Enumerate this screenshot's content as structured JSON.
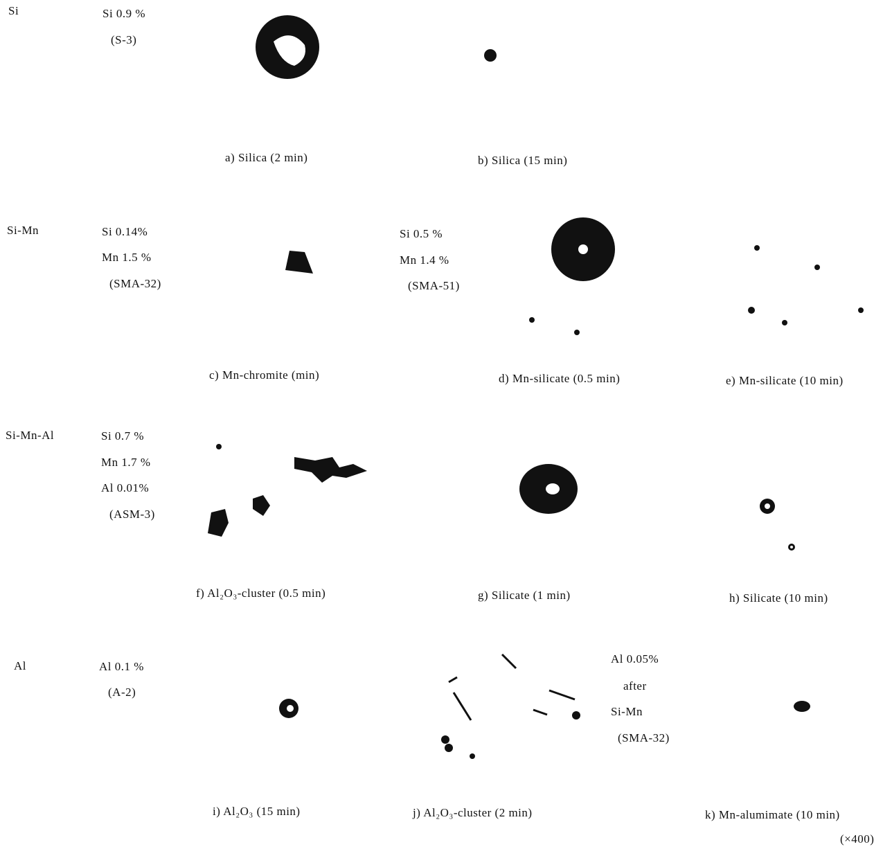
{
  "rows": [
    {
      "label": "Si",
      "composition": [
        "Si 0.9 %",
        "(S-3)"
      ]
    },
    {
      "label": "Si-Mn",
      "composition": [
        "Si 0.14%",
        "Mn 1.5 %",
        "(SMA-32)"
      ]
    },
    {
      "label": "Si-Mn-Al",
      "composition": [
        "Si 0.7 %",
        "Mn 1.7 %",
        "Al 0.01%",
        "(ASM-3)"
      ]
    },
    {
      "label": "Al",
      "composition": [
        "Al 0.1 %",
        "(A-2)"
      ]
    }
  ],
  "panels": [
    {
      "caption": "a) Silica (2 min)"
    },
    {
      "caption": "b) Silica (15 min)"
    },
    {
      "caption": "c) Mn-chromite (min)"
    },
    {
      "caption": "d) Mn-silicate (0.5 min)",
      "composition": [
        "Si 0.5 %",
        "Mn 1.4 %",
        "(SMA-51)"
      ]
    },
    {
      "caption": "e) Mn-silicate (10 min)"
    },
    {
      "caption": "f) Al₂O₃-cluster (0.5 min)"
    },
    {
      "caption": "g) Silicate (1 min)"
    },
    {
      "caption": "h) Silicate (10 min)"
    },
    {
      "caption": "i) Al₂O₃ (15 min)"
    },
    {
      "caption": "j) Al₂O₃-cluster (2 min)",
      "composition": [
        "Al 0.05%",
        "after",
        "Si-Mn",
        "(SMA-32)"
      ]
    },
    {
      "caption": "k) Mn-alumimate (10 min)"
    }
  ],
  "magnification": "(×400)"
}
